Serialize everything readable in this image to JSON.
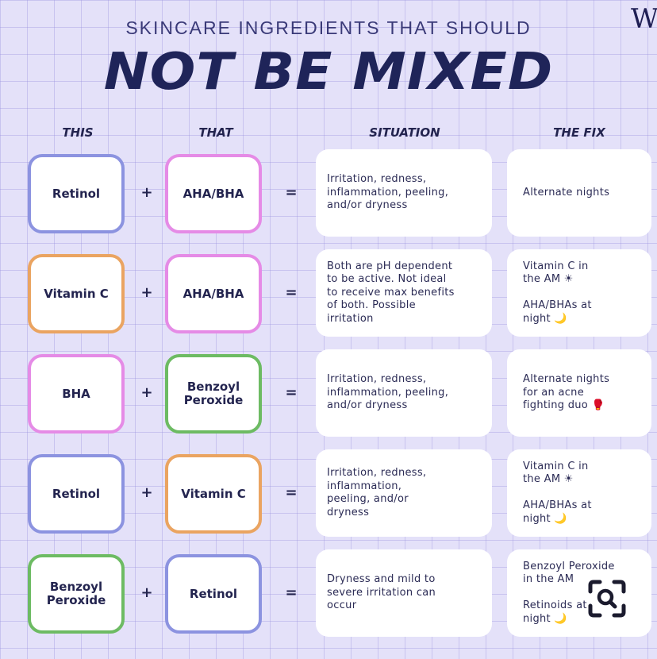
{
  "header": {
    "logo": "W",
    "subtitle": "SKINCARE INGREDIENTS THAT SHOULD",
    "title": "NOT BE MIXED"
  },
  "columns": {
    "this": "THIS",
    "that": "THAT",
    "situation": "SITUATION",
    "fix": "THE FIX"
  },
  "operators": {
    "plus": "+",
    "equals": "="
  },
  "rows": [
    {
      "this": "Retinol",
      "this_color": "#8c93e0",
      "that": "AHA/BHA",
      "that_color": "#e58be6",
      "situation": "Irritation, redness,\ninflammation, peeling,\nand/or dryness",
      "fix": "Alternate nights"
    },
    {
      "this": "Vitamin C",
      "this_color": "#eaa461",
      "that": "AHA/BHA",
      "that_color": "#e58be6",
      "situation": "Both are pH dependent\nto be active. Not ideal\nto receive max benefits\nof both. Possible\nirritation",
      "fix": "Vitamin C in\nthe AM ☀\n\nAHA/BHAs at\nnight 🌙"
    },
    {
      "this": "BHA",
      "this_color": "#e58be6",
      "that": "Benzoyl\nPeroxide",
      "that_color": "#6dbb63",
      "situation": "Irritation, redness,\ninflammation, peeling,\nand/or dryness",
      "fix": "Alternate nights\nfor an acne\nfighting duo 🥊"
    },
    {
      "this": "Retinol",
      "this_color": "#8c93e0",
      "that": "Vitamin C",
      "that_color": "#eaa461",
      "situation": "Irritation, redness,\ninflammation,\npeeling, and/or\ndryness",
      "fix": "Vitamin C in\nthe AM ☀\n\nAHA/BHAs at\nnight 🌙"
    },
    {
      "this": "Benzoyl\nPeroxide",
      "this_color": "#6dbb63",
      "that": "Retinol",
      "that_color": "#8c93e0",
      "situation": "Dryness and mild to\nsevere irritation can\noccur",
      "fix": "Benzoyl Peroxide\nin the AM\n\nRetinoids at\nnight 🌙"
    }
  ],
  "overlay": {
    "icon": "visual-search-icon"
  }
}
